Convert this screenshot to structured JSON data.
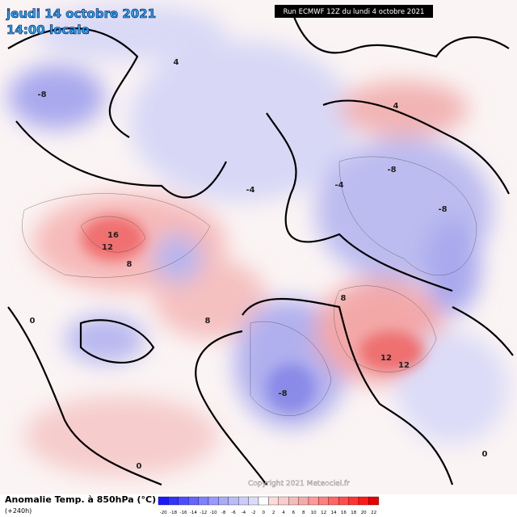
{
  "header": {
    "date": "jeudi 14 octobre 2021",
    "time": "14:00 locale",
    "run": "Run ECMWF 12Z du lundi 4 octobre 2021"
  },
  "legend": {
    "title": "Anomalie Temp. à 850hPa (°C)",
    "lead": "(+240h)",
    "ticks": [
      -20,
      -18,
      -16,
      -14,
      -12,
      -10,
      -8,
      -6,
      -4,
      -2,
      0,
      2,
      4,
      6,
      8,
      10,
      12,
      14,
      16,
      18,
      20,
      22
    ],
    "colors": [
      "#1a1aff",
      "#3333ff",
      "#4d4dff",
      "#6666ff",
      "#7f7fff",
      "#9999ff",
      "#aaaaf5",
      "#bbbbf5",
      "#ccccf8",
      "#dcdcfa",
      "#ffffff",
      "#fadcdc",
      "#f8cccc",
      "#f5bbbb",
      "#f5aaaa",
      "#ff9999",
      "#ff7f7f",
      "#ff6666",
      "#ff4d4d",
      "#ff3333",
      "#ff1a1a",
      "#e60000"
    ]
  },
  "copyright": "Copyright 2021 Meteociel.fr",
  "map_labels": [
    "16",
    "12",
    "12",
    "12",
    "-8",
    "-8",
    "-8",
    "-8",
    "8",
    "8",
    "8",
    "-4",
    "-4",
    "4",
    "4",
    "0",
    "0",
    "0"
  ]
}
